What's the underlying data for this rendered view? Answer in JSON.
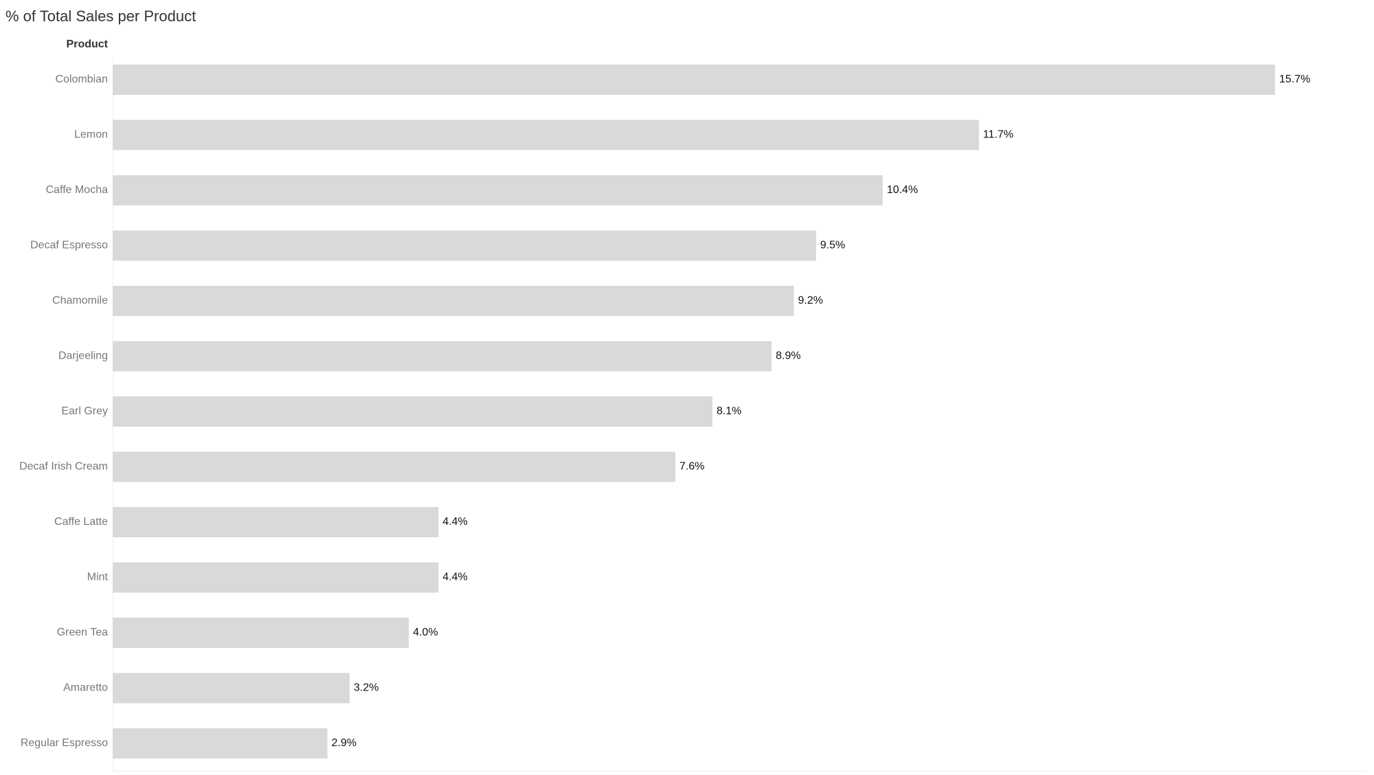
{
  "chart_data": {
    "type": "bar",
    "orientation": "horizontal",
    "title": "% of Total Sales per Product",
    "category_axis_label": "Product",
    "categories": [
      "Colombian",
      "Lemon",
      "Caffe Mocha",
      "Decaf Espresso",
      "Chamomile",
      "Darjeeling",
      "Earl Grey",
      "Decaf Irish Cream",
      "Caffe Latte",
      "Mint",
      "Green Tea",
      "Amaretto",
      "Regular Espresso"
    ],
    "values": [
      15.7,
      11.7,
      10.4,
      9.5,
      9.2,
      8.9,
      8.1,
      7.6,
      4.4,
      4.4,
      4.0,
      3.2,
      2.9
    ],
    "value_labels": [
      "15.7%",
      "11.7%",
      "10.4%",
      "9.5%",
      "9.2%",
      "8.9%",
      "8.1%",
      "7.6%",
      "4.4%",
      "4.4%",
      "4.0%",
      "3.2%",
      "2.9%"
    ],
    "color": "#d9d9d9"
  }
}
